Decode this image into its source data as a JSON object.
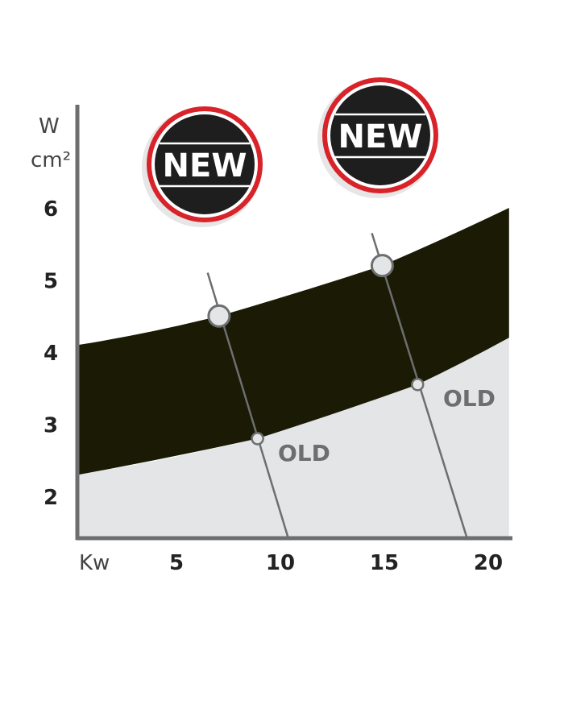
{
  "chart_data": {
    "type": "area",
    "xlabel": "Kw",
    "ylabel_top": "W",
    "ylabel_bottom": "cm²",
    "x_ticks": [
      "5",
      "10",
      "15",
      "20"
    ],
    "y_ticks": [
      "2",
      "3",
      "4",
      "5",
      "6"
    ],
    "xlim": [
      0.2,
      21
    ],
    "ylim": [
      1.4,
      7.5
    ],
    "grid": false,
    "band_upper": {
      "x": [
        0.3,
        7.05,
        14.9,
        21.0
      ],
      "y": [
        4.1,
        4.5,
        5.2,
        6.0
      ]
    },
    "band_lower": {
      "x": [
        0.3,
        8.9,
        16.6,
        21.0
      ],
      "y": [
        2.3,
        2.8,
        3.55,
        4.2
      ]
    },
    "guide_lines": [
      {
        "from": [
          6.5,
          5.1
        ],
        "to": [
          10.4,
          1.4
        ],
        "new_point": [
          7.05,
          4.5
        ],
        "old_point": [
          8.9,
          2.8
        ]
      },
      {
        "from": [
          14.4,
          5.65
        ],
        "to": [
          19.0,
          1.4
        ],
        "new_point": [
          14.9,
          5.2
        ],
        "old_point": [
          16.6,
          3.55
        ]
      }
    ],
    "labels": {
      "old": "OLD",
      "new": "NEW"
    },
    "colors": {
      "band": "#1a1a05",
      "below": "#e4e5e7",
      "axis": "#6d6e70",
      "badge_ring": "#d8232a",
      "badge_fill": "#1e1e1e"
    }
  }
}
